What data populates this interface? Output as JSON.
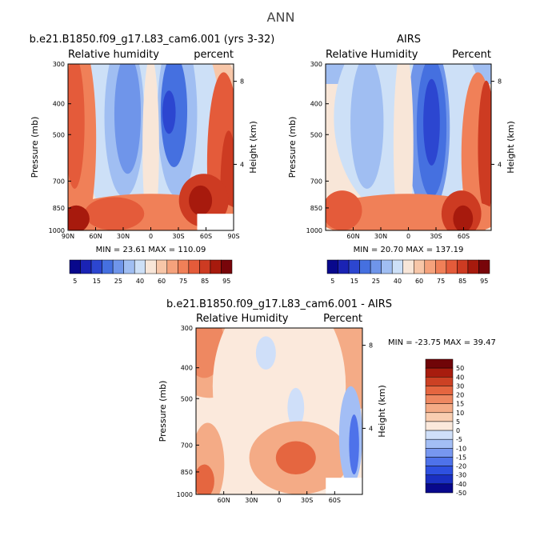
{
  "title": "ANN",
  "colors": {
    "rh_levels": [
      "#08088c",
      "#1a23b4",
      "#2c46d0",
      "#4570e0",
      "#6f95ea",
      "#a0bef2",
      "#cde0f7",
      "#f8e6d8",
      "#f7c6a8",
      "#f5a27c",
      "#f08058",
      "#e45b3a",
      "#cd3b22",
      "#a71a0d",
      "#78050a"
    ],
    "diff_levels": [
      "#08088c",
      "#1a2fc2",
      "#2e50e0",
      "#4e72ea",
      "#7797f0",
      "#a3bef5",
      "#cfdff9",
      "#fbe9dc",
      "#f9cdb0",
      "#f4ab86",
      "#ee8861",
      "#e56640",
      "#cc4124",
      "#a81c0e",
      "#700508"
    ],
    "missing": "#ffffff"
  },
  "chart_data": [
    {
      "type": "heatmap",
      "panel": "model",
      "title": "b.e21.B1850.f09_g17.L83_cam6.001 (yrs 3-32)",
      "variable_label": "Relative humidity",
      "units_label": "percent",
      "ylabel": "Pressure (mb)",
      "ylabel_right": "Height (km)",
      "x_ticks": [
        "90N",
        "60N",
        "30N",
        "0",
        "30S",
        "60S",
        "90S"
      ],
      "xlim": [
        90,
        -90
      ],
      "y_ticks": [
        "300",
        "400",
        "500",
        "700",
        "850",
        "1000"
      ],
      "ylim": [
        1000,
        300
      ],
      "y_scale": "log",
      "y_right_ticks": [
        "8",
        "4"
      ],
      "min_label": "MIN =",
      "min_value": "23.61",
      "max_label": "MAX =",
      "max_value": "110.09",
      "colorbar_ticks": [
        "5",
        "15",
        "25",
        "40",
        "60",
        "75",
        "85",
        "95"
      ],
      "levels": [
        5,
        10,
        15,
        20,
        25,
        30,
        40,
        50,
        60,
        70,
        75,
        80,
        85,
        90,
        95
      ],
      "features": {
        "tropics_low_level_moist": 75,
        "subtropical_dry_minimum": 25,
        "southern_midlat_boundary_layer": 90
      }
    },
    {
      "type": "heatmap",
      "panel": "obs",
      "title": "AIRS",
      "variable_label": "Relative Humidity",
      "units_label": "Percent",
      "ylabel": "Pressure (mb)",
      "ylabel_right": "Height (km)",
      "x_ticks": [
        "60N",
        "30N",
        "0",
        "30S",
        "60S"
      ],
      "xlim": [
        90,
        -90
      ],
      "y_ticks": [
        "300",
        "400",
        "500",
        "700",
        "850",
        "1000"
      ],
      "ylim": [
        1000,
        300
      ],
      "y_scale": "log",
      "y_right_ticks": [
        "8",
        "4"
      ],
      "min_label": "MIN =",
      "min_value": "20.70",
      "max_label": "MAX =",
      "max_value": "137.19",
      "colorbar_ticks": [
        "5",
        "15",
        "25",
        "40",
        "60",
        "75",
        "85",
        "95"
      ],
      "levels": [
        5,
        10,
        15,
        20,
        25,
        30,
        40,
        50,
        60,
        70,
        75,
        80,
        85,
        90,
        95
      ]
    },
    {
      "type": "heatmap",
      "panel": "difference",
      "title": "b.e21.B1850.f09_g17.L83_cam6.001 - AIRS",
      "variable_label": "Relative Humidity",
      "units_label": "Percent",
      "ylabel": "Pressure (mb)",
      "ylabel_right": "Height (km)",
      "x_ticks": [
        "60N",
        "30N",
        "0",
        "30S",
        "60S"
      ],
      "xlim": [
        90,
        -90
      ],
      "y_ticks": [
        "300",
        "400",
        "500",
        "700",
        "850",
        "1000"
      ],
      "ylim": [
        1000,
        300
      ],
      "y_scale": "log",
      "y_right_ticks": [
        "8",
        "4"
      ],
      "min_label": "MIN =",
      "min_value": "-23.75",
      "max_label": "MAX =",
      "max_value": "39.47",
      "colorbar_ticks": [
        "50",
        "40",
        "30",
        "20",
        "15",
        "10",
        "5",
        "0",
        "-5",
        "-10",
        "-15",
        "-20",
        "-30",
        "-40",
        "-50"
      ],
      "levels": [
        -50,
        -40,
        -30,
        -20,
        -15,
        -10,
        -5,
        0,
        5,
        10,
        15,
        20,
        30,
        40,
        50
      ]
    }
  ]
}
